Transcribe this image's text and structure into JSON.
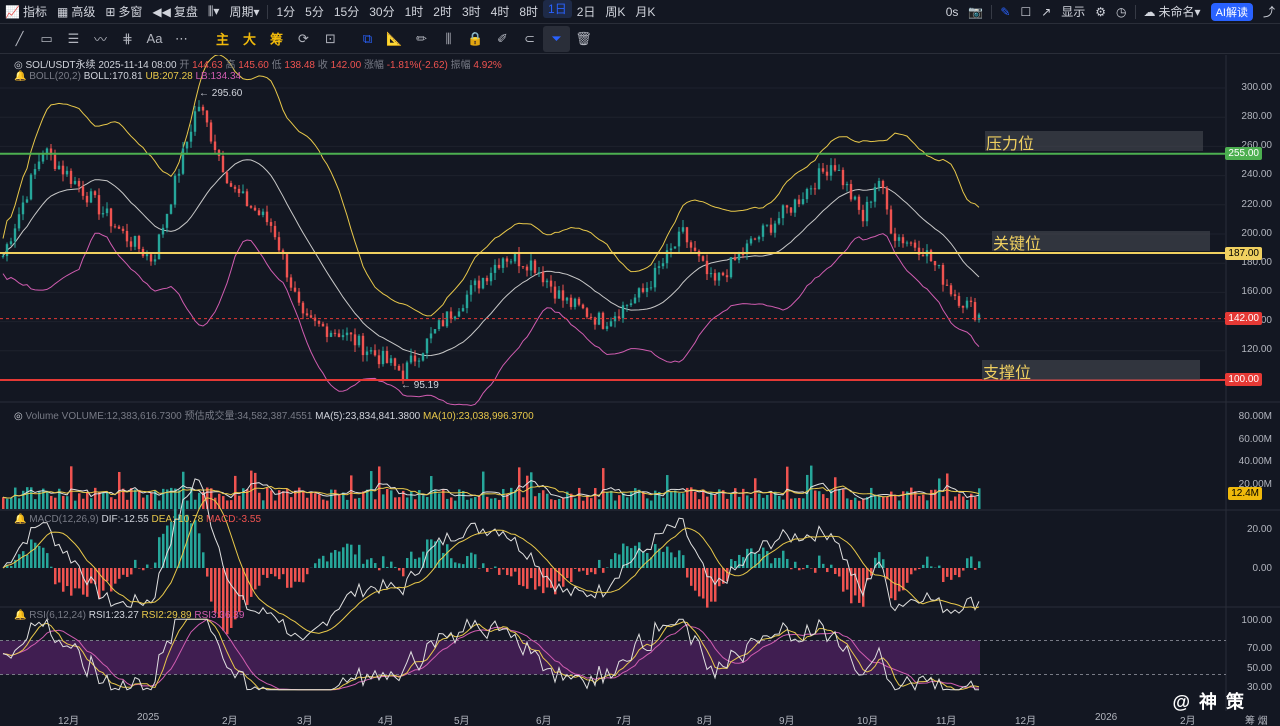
{
  "toolbar": {
    "indicators": "指标",
    "advanced": "高级",
    "multi_window": "多窗",
    "replay": "复盘",
    "period_label": "周期",
    "periods": [
      "1分",
      "5分",
      "15分",
      "30分",
      "1时",
      "2时",
      "3时",
      "4时",
      "8时",
      "1日",
      "2日",
      "周K",
      "月K"
    ],
    "active_period": "1日",
    "timer": "0s",
    "display": "显示",
    "unnamed": "未命名",
    "ai": "AI解读"
  },
  "drawing_tools": {
    "main": "主",
    "large": "大",
    "chip": "筹"
  },
  "main_legend": {
    "symbol": "SOL/USDT永续",
    "datetime": "2025-11-14 08:00",
    "open_label": "开",
    "open": "144.63",
    "high_label": "高",
    "high": "145.60",
    "low_label": "低",
    "low": "138.48",
    "close_label": "收",
    "close": "142.00",
    "chg_label": "涨幅",
    "chg": "-1.81%(-2.62)",
    "amp_label": "振幅",
    "amp": "4.92%",
    "boll": "BOLL(20,2)",
    "boll_mid": "BOLL:170.81",
    "boll_ub": "UB:207.28",
    "boll_lb": "LB:134.34"
  },
  "price_axis": [
    "300.00",
    "280.00",
    "260.00",
    "240.00",
    "220.00",
    "200.00",
    "180.00",
    "160.00",
    "140.00",
    "120.00"
  ],
  "price_tags": {
    "resistance": "255.00",
    "key": "187.00",
    "current": "142.00",
    "support": "100.00"
  },
  "zones": {
    "resistance": "压力位",
    "key": "关键位",
    "support": "支撑位"
  },
  "extremes": {
    "high": "← 295.60",
    "low": "← 95.19"
  },
  "volume_legend": {
    "title": "Volume",
    "volume": "VOLUME:12,383,616.7300",
    "estimate": "预估成交量:34,582,387.4551",
    "ma5": "MA(5):23,834,841.3800",
    "ma10": "MA(10):23,038,996.3700"
  },
  "volume_axis": [
    "80.00M",
    "60.00M",
    "40.00M",
    "20.00M"
  ],
  "volume_tag": "12.4M",
  "macd_legend": {
    "title": "MACD(12,26,9)",
    "dif": "DIF:-12.55",
    "dea": "DEA:-10.78",
    "macd": "MACD:-3.55"
  },
  "macd_axis": [
    "20.00",
    "0.00"
  ],
  "rsi_legend": {
    "title": "RSI(6,12,24)",
    "rsi1": "RSI1:23.27",
    "rsi2": "RSI2:29.89",
    "rsi3": "RSI3:36.39"
  },
  "rsi_axis": [
    "100.00",
    "70.00",
    "50.00",
    "30.00"
  ],
  "x_axis": [
    "12月",
    "2025",
    "2月",
    "3月",
    "4月",
    "5月",
    "6月",
    "7月",
    "8月",
    "9月",
    "10月",
    "11月",
    "12月",
    "2026",
    "2月"
  ],
  "x_axis_right": "筹 烟",
  "watermark": "@ 神 策",
  "colors": {
    "up": "#26a69a",
    "down": "#ef5350",
    "resistance": "#4caf50",
    "key": "#f0d060",
    "support": "#e53935",
    "current": "#e53935",
    "boll_mid": "#c8c8c8",
    "boll_ub": "#e8c84a",
    "boll_lb": "#d05cb0"
  }
}
